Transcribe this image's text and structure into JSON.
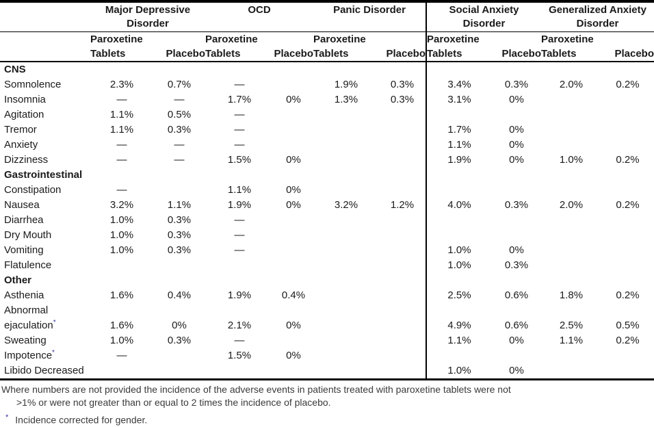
{
  "table": {
    "corner": "",
    "groups": [
      {
        "label": "Major Depressive Disorder"
      },
      {
        "label": "OCD"
      },
      {
        "label": "Panic Disorder"
      },
      {
        "label": "Social Anxiety Disorder"
      },
      {
        "label": "Generalized Anxiety Disorder"
      }
    ],
    "subheader": {
      "paroxetine": "Paroxetine Tablets",
      "placebo": "Placebo"
    },
    "rows": [
      {
        "type": "section",
        "label": "CNS"
      },
      {
        "type": "data",
        "label": "Somnolence",
        "values": [
          "2.3%",
          "0.7%",
          "—",
          "",
          "1.9%",
          "0.3%",
          "3.4%",
          "0.3%",
          "2.0%",
          "0.2%"
        ]
      },
      {
        "type": "data",
        "label": "Insomnia",
        "values": [
          "—",
          "—",
          "1.7%",
          "0%",
          "1.3%",
          "0.3%",
          "3.1%",
          "0%",
          "",
          ""
        ]
      },
      {
        "type": "data",
        "label": "Agitation",
        "values": [
          "1.1%",
          "0.5%",
          "—",
          "",
          "",
          "",
          "",
          "",
          "",
          ""
        ]
      },
      {
        "type": "data",
        "label": "Tremor",
        "values": [
          "1.1%",
          "0.3%",
          "—",
          "",
          "",
          "",
          "1.7%",
          "0%",
          "",
          ""
        ]
      },
      {
        "type": "data",
        "label": "Anxiety",
        "values": [
          "—",
          "—",
          "—",
          "",
          "",
          "",
          "1.1%",
          "0%",
          "",
          ""
        ]
      },
      {
        "type": "data",
        "label": "Dizziness",
        "values": [
          "—",
          "—",
          "1.5%",
          "0%",
          "",
          "",
          "1.9%",
          "0%",
          "1.0%",
          "0.2%"
        ]
      },
      {
        "type": "section",
        "label": "Gastrointestinal"
      },
      {
        "type": "data",
        "label": "Constipation",
        "values": [
          "—",
          "",
          "1.1%",
          "0%",
          "",
          "",
          "",
          "",
          "",
          ""
        ]
      },
      {
        "type": "data",
        "label": "Nausea",
        "values": [
          "3.2%",
          "1.1%",
          "1.9%",
          "0%",
          "3.2%",
          "1.2%",
          "4.0%",
          "0.3%",
          "2.0%",
          "0.2%"
        ]
      },
      {
        "type": "data",
        "label": "Diarrhea",
        "values": [
          "1.0%",
          "0.3%",
          "—",
          "",
          "",
          "",
          "",
          "",
          "",
          ""
        ]
      },
      {
        "type": "data",
        "label": "Dry Mouth",
        "values": [
          "1.0%",
          "0.3%",
          "—",
          "",
          "",
          "",
          "",
          "",
          "",
          ""
        ]
      },
      {
        "type": "data",
        "label": "Vomiting",
        "values": [
          "1.0%",
          "0.3%",
          "—",
          "",
          "",
          "",
          "1.0%",
          "0%",
          "",
          ""
        ]
      },
      {
        "type": "data",
        "label": "Flatulence",
        "values": [
          "",
          "",
          "",
          "",
          "",
          "",
          "1.0%",
          "0.3%",
          "",
          ""
        ]
      },
      {
        "type": "section",
        "label": "Other"
      },
      {
        "type": "data",
        "label": "Asthenia",
        "values": [
          "1.6%",
          "0.4%",
          "1.9%",
          "0.4%",
          "",
          "",
          "2.5%",
          "0.6%",
          "1.8%",
          "0.2%"
        ]
      },
      {
        "type": "data",
        "label": "Abnormal",
        "values": [
          "",
          "",
          "",
          "",
          "",
          "",
          "",
          "",
          "",
          ""
        ]
      },
      {
        "type": "data",
        "label": "ejaculation",
        "sup": "*",
        "values": [
          "1.6%",
          "0%",
          "2.1%",
          "0%",
          "",
          "",
          "4.9%",
          "0.6%",
          "2.5%",
          "0.5%"
        ]
      },
      {
        "type": "data",
        "label": "Sweating",
        "values": [
          "1.0%",
          "0.3%",
          "—",
          "",
          "",
          "",
          "1.1%",
          "0%",
          "1.1%",
          "0.2%"
        ]
      },
      {
        "type": "data",
        "label": "Impotence",
        "sup": "*",
        "values": [
          "—",
          "",
          "1.5%",
          "0%",
          "",
          "",
          "",
          "",
          "",
          ""
        ]
      },
      {
        "type": "data",
        "label": "Libido Decreased",
        "values": [
          "",
          "",
          "",
          "",
          "",
          "",
          "1.0%",
          "0%",
          "",
          ""
        ]
      }
    ]
  },
  "footnotes": {
    "general_line1": "Where numbers are not provided the incidence of the adverse events in patients treated with paroxetine tablets were not",
    "general_line2": ">1% or were not greater than or equal to 2 times the incidence of placebo.",
    "asterisk_marker": "*",
    "asterisk_text": "Incidence corrected for gender."
  },
  "colors": {
    "text": "#1a1a1a",
    "footnote_text": "#3a3a3a",
    "asterisk": "#31319c",
    "rule": "#000000"
  }
}
